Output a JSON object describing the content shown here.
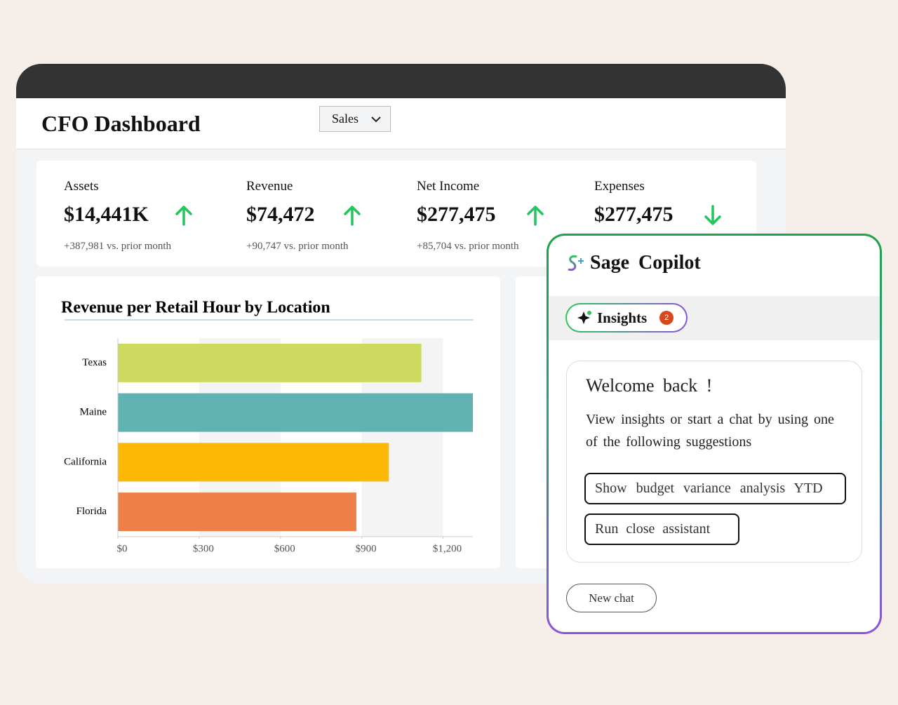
{
  "header": {
    "title": "CFO Dashboard",
    "dropdown": "Sales"
  },
  "kpis": [
    {
      "label": "Assets",
      "value": "$14,441K",
      "change": "+387,981 vs. prior month",
      "trend": "up"
    },
    {
      "label": "Revenue",
      "value": "$74,472",
      "change": "+90,747 vs. prior month",
      "trend": "up"
    },
    {
      "label": "Net Income",
      "value": "$277,475",
      "change": "+85,704 vs. prior month",
      "trend": "up"
    },
    {
      "label": "Expenses",
      "value": "$277,475",
      "change": "",
      "trend": "down"
    }
  ],
  "chart_data": {
    "type": "bar",
    "orientation": "horizontal",
    "title": "Revenue per Retail Hour by Location",
    "categories": [
      "Texas",
      "Maine",
      "California",
      "Florida"
    ],
    "values": [
      1120,
      1310,
      1000,
      880
    ],
    "colors": [
      "#ccdb5f",
      "#60b3b2",
      "#fdb705",
      "#ee7f48"
    ],
    "xlim": [
      0,
      1310
    ],
    "xticks": [
      {
        "value": 0,
        "label": "$0"
      },
      {
        "value": 300,
        "label": "$300"
      },
      {
        "value": 600,
        "label": "$600"
      },
      {
        "value": 900,
        "label": "$900"
      },
      {
        "value": 1200,
        "label": "$1,200"
      }
    ],
    "grid": true
  },
  "copilot": {
    "title": "Sage Copilot",
    "tab": "Insights",
    "badge": 2,
    "welcome": "Welcome back !",
    "message": "View insights or start a chat by using one of the following suggestions",
    "suggestions": [
      "Show budget variance analysis YTD",
      "Run close assistant"
    ],
    "new_chat": "New chat"
  }
}
